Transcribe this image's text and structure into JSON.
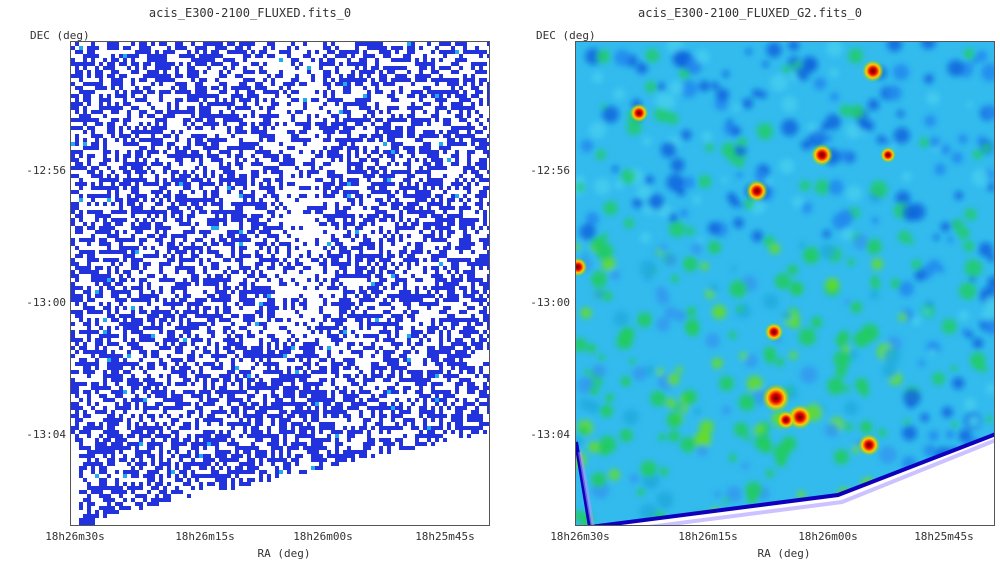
{
  "colors": {
    "background": "#ffffff",
    "left_primary": "#2233dd",
    "right_low": "#0000aa",
    "right_mid": "#00cc44",
    "right_high": "#ee0000"
  },
  "chart_data": [
    {
      "type": "heatmap",
      "title": "acis_E300-2100_FLUXED.fits_0",
      "xlabel": "RA (deg)",
      "ylabel": "DEC (deg)",
      "x_ticks": [
        "18h26m30s",
        "18h26m15s",
        "18h26m00s",
        "18h25m45s"
      ],
      "y_ticks": [
        "-12:56",
        "-13:00",
        "-13:04"
      ],
      "grid": false,
      "colormap": "white-blue sparse counts"
    },
    {
      "type": "heatmap",
      "title": "acis_E300-2100_FLUXED_G2.fits_0",
      "xlabel": "RA (deg)",
      "ylabel": "DEC (deg)",
      "x_ticks": [
        "18h26m30s",
        "18h26m15s",
        "18h26m00s",
        "18h25m45s"
      ],
      "y_ticks": [
        "-12:56",
        "-13:00",
        "-13:04"
      ],
      "grid": false,
      "colormap": "blue-cyan-green-yellow-red smoothed"
    }
  ]
}
